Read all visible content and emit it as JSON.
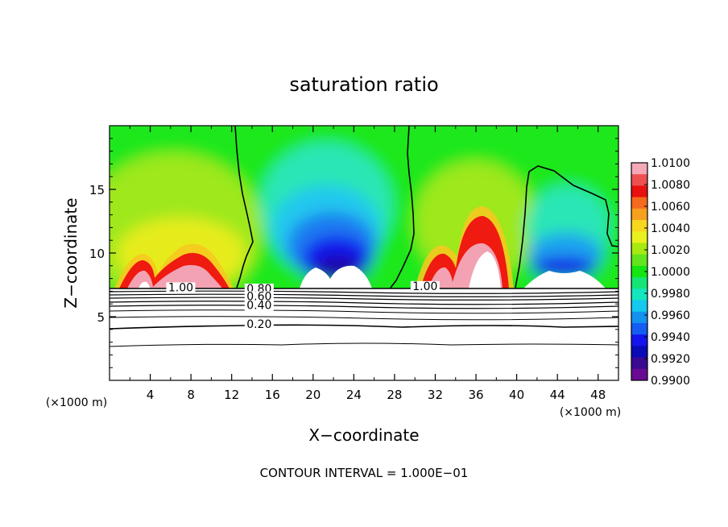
{
  "chart_data": {
    "type": "heatmap",
    "title": "saturation ratio",
    "xlabel": "X−coordinate",
    "ylabel": "Z−coordinate",
    "x_unit_left": "(×1000 m)",
    "x_unit_right": "(×1000 m)",
    "xlim": [
      0,
      50
    ],
    "ylim": [
      0,
      20
    ],
    "x_ticks": [
      4,
      8,
      12,
      16,
      20,
      24,
      28,
      32,
      36,
      40,
      44,
      48
    ],
    "y_ticks": [
      5,
      10,
      15
    ],
    "grid": false,
    "footer": "CONTOUR INTERVAL = 1.000E−01",
    "colorbar": {
      "placement": "right",
      "labels": [
        "1.0100",
        "1.0080",
        "1.0060",
        "1.0040",
        "1.0020",
        "1.0000",
        "0.9980",
        "0.9960",
        "0.9940",
        "0.9920",
        "0.9900"
      ],
      "colors": [
        "#f4a8b8",
        "#ee5050",
        "#e81010",
        "#f46a1e",
        "#f7a01e",
        "#f7d61e",
        "#e8f01e",
        "#a6ea12",
        "#64e41c",
        "#14e614",
        "#14e676",
        "#14e6c0",
        "#14c8ee",
        "#1492f0",
        "#145cf2",
        "#1414ee",
        "#0a0ab6",
        "#3a0a92",
        "#6a0a92"
      ]
    },
    "contour_labels": [
      {
        "text": "1.00",
        "x": 7,
        "y": 7.0
      },
      {
        "text": "0.80",
        "x": 14.7,
        "y": 6.9
      },
      {
        "text": "0.60",
        "x": 14.7,
        "y": 6.3
      },
      {
        "text": "0.40",
        "x": 14.7,
        "y": 5.6
      },
      {
        "text": "0.20",
        "x": 14.7,
        "y": 4.1
      },
      {
        "text": "1.00",
        "x": 31,
        "y": 7.1
      }
    ]
  }
}
